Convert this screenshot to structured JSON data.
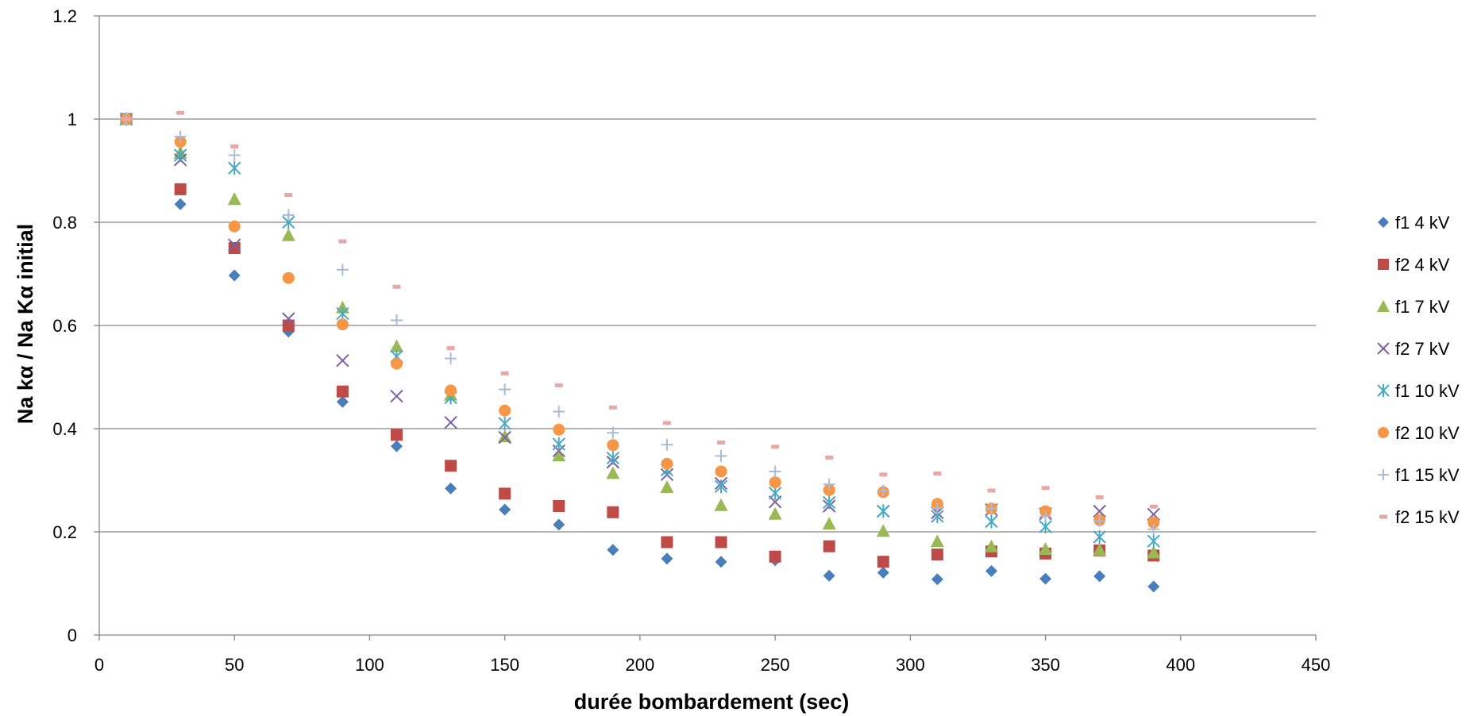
{
  "chart_data": {
    "type": "scatter",
    "title": "",
    "xlabel": "durée bombardement (sec)",
    "ylabel": "Na kα / Na Kα initial",
    "xlim": [
      0,
      450
    ],
    "ylim": [
      0,
      1.2
    ],
    "x_ticks": [
      "0",
      "50",
      "100",
      "150",
      "200",
      "250",
      "300",
      "350",
      "400",
      "450"
    ],
    "y_ticks": [
      "0",
      "0.2",
      "0.4",
      "0.6",
      "0.8",
      "1",
      "1.2"
    ],
    "grid": "horizontal major gridlines",
    "legend_position": "right",
    "x": [
      10,
      30,
      50,
      70,
      90,
      110,
      130,
      150,
      170,
      190,
      210,
      230,
      250,
      270,
      290,
      310,
      330,
      350,
      370,
      390
    ],
    "series": [
      {
        "name": "f1 4 kV",
        "marker": "diamond",
        "color": "#4a7ebb",
        "values": [
          1.0,
          0.835,
          0.697,
          0.588,
          0.452,
          0.366,
          0.284,
          0.243,
          0.214,
          0.165,
          0.148,
          0.142,
          0.145,
          0.115,
          0.121,
          0.108,
          0.124,
          0.109,
          0.114,
          0.094
        ]
      },
      {
        "name": "f2 4 kV",
        "marker": "square",
        "color": "#be4b48",
        "values": [
          1.0,
          0.864,
          0.75,
          0.6,
          0.472,
          0.388,
          0.328,
          0.274,
          0.25,
          0.238,
          0.18,
          0.18,
          0.152,
          0.172,
          0.142,
          0.156,
          0.162,
          0.158,
          0.164,
          0.154
        ]
      },
      {
        "name": "f1 7 kV",
        "marker": "triangle",
        "color": "#98b954",
        "values": [
          1.0,
          0.935,
          0.845,
          0.775,
          0.635,
          0.56,
          0.466,
          0.385,
          0.348,
          0.314,
          0.287,
          0.252,
          0.235,
          0.216,
          0.202,
          0.182,
          0.172,
          0.167,
          0.165,
          0.16
        ]
      },
      {
        "name": "f2 7 kV",
        "marker": "x",
        "color": "#7d60a0",
        "values": [
          1.0,
          0.921,
          0.756,
          0.613,
          0.532,
          0.463,
          0.412,
          0.383,
          0.357,
          0.335,
          0.311,
          0.294,
          0.258,
          0.25,
          0.24,
          0.237,
          0.243,
          0.235,
          0.24,
          0.234
        ]
      },
      {
        "name": "f1 10 kV",
        "marker": "asterisk",
        "color": "#46aac5",
        "values": [
          1.0,
          0.93,
          0.905,
          0.8,
          0.623,
          0.54,
          0.46,
          0.41,
          0.37,
          0.343,
          0.32,
          0.288,
          0.275,
          0.257,
          0.24,
          0.23,
          0.22,
          0.21,
          0.19,
          0.182
        ]
      },
      {
        "name": "f2 10 kV",
        "marker": "circle",
        "color": "#f79646",
        "values": [
          1.0,
          0.956,
          0.792,
          0.692,
          0.602,
          0.526,
          0.474,
          0.435,
          0.398,
          0.368,
          0.332,
          0.317,
          0.296,
          0.281,
          0.277,
          0.254,
          0.245,
          0.24,
          0.223,
          0.218
        ]
      },
      {
        "name": "f1 15 kV",
        "marker": "plus",
        "color": "#a9bbdb",
        "values": [
          1.0,
          0.966,
          0.93,
          0.814,
          0.708,
          0.61,
          0.536,
          0.476,
          0.433,
          0.392,
          0.369,
          0.347,
          0.317,
          0.292,
          0.28,
          0.246,
          0.245,
          0.23,
          0.221,
          0.205
        ]
      },
      {
        "name": "f2 15 kV",
        "marker": "dash",
        "color": "#e6a9a5",
        "values": [
          1.0,
          1.012,
          0.947,
          0.853,
          0.763,
          0.675,
          0.556,
          0.507,
          0.484,
          0.441,
          0.411,
          0.373,
          0.365,
          0.344,
          0.311,
          0.313,
          0.28,
          0.285,
          0.267,
          0.249
        ]
      }
    ]
  }
}
